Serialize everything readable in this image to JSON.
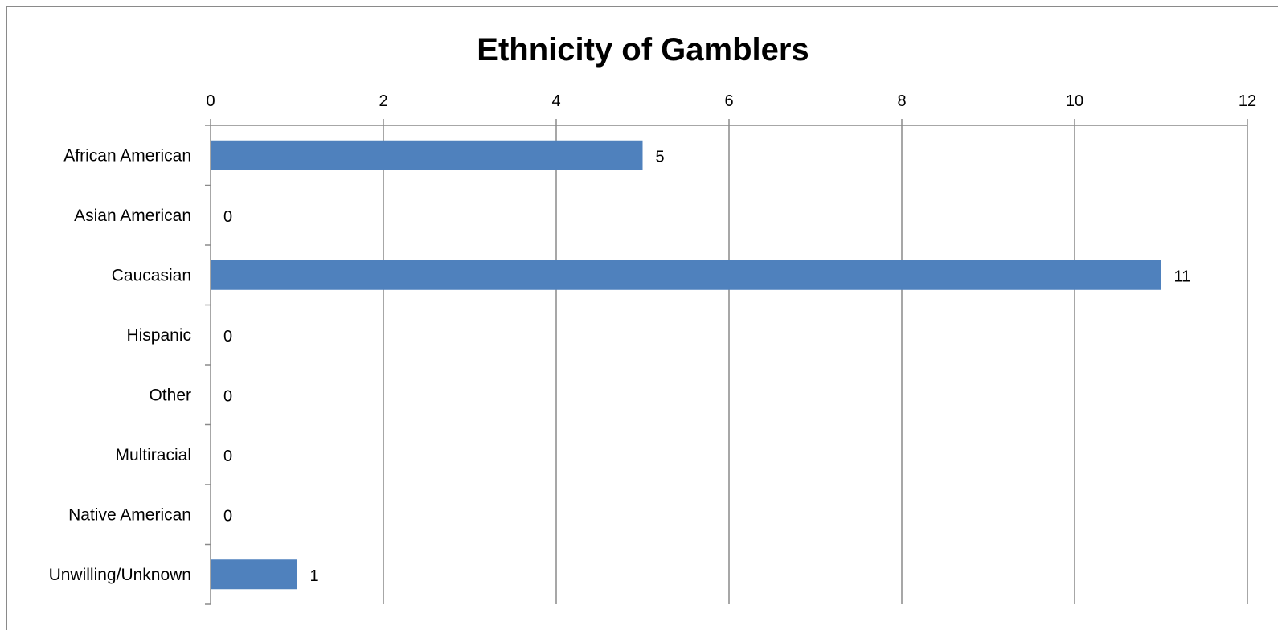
{
  "chart_data": {
    "type": "bar",
    "orientation": "horizontal",
    "title": "Ethnicity of Gamblers",
    "xlabel": "",
    "ylabel": "",
    "categories": [
      "African American",
      "Asian American",
      "Caucasian",
      "Hispanic",
      "Other",
      "Multiracial",
      "Native American",
      "Unwilling/Unknown"
    ],
    "values": [
      5,
      0,
      11,
      0,
      0,
      0,
      0,
      1
    ],
    "xlim": [
      0,
      12
    ],
    "xticks": [
      0,
      2,
      4,
      6,
      8,
      10,
      12
    ],
    "value_axis_position": "top",
    "grid": true,
    "legend": "none",
    "colors": {
      "bar": "#4f81bd",
      "grid": "#8a8a8a",
      "axis": "#8a8a8a"
    },
    "data_labels": true
  }
}
